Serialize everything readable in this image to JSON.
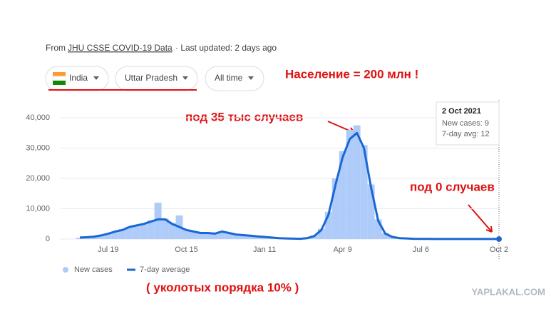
{
  "header": {
    "prefix": "From",
    "source": "JHU CSSE COVID-19 Data",
    "updated": "· Last updated: 2 days ago"
  },
  "filters": [
    "India",
    "Uttar Pradesh",
    "All time"
  ],
  "annotations": {
    "population": "Население = 200 млн !",
    "peak": "под 35 тыс случаев",
    "zero": "под 0 случаев",
    "vaccinated": "( уколотых порядка 10% )"
  },
  "watermark": "YAPLAKAL.COM",
  "tooltip": {
    "date": "2 Oct 2021",
    "lines": [
      "New cases: 9",
      "7-day avg: 12"
    ]
  },
  "chart_data": {
    "type": "bar",
    "categories": [
      null,
      null,
      null,
      null,
      "Jul 19",
      null,
      null,
      null,
      null,
      null,
      null,
      null,
      null,
      null,
      null,
      "Oct 15",
      null,
      null,
      null,
      null,
      null,
      null,
      null,
      null,
      null,
      null,
      "Jan 11",
      null,
      null,
      null,
      null,
      null,
      null,
      null,
      null,
      null,
      null,
      "Apr 9",
      null,
      null,
      null,
      null,
      null,
      null,
      null,
      null,
      null,
      null,
      "Jul 6",
      null,
      null,
      null,
      null,
      null,
      null,
      null,
      null,
      null,
      null,
      "Oct 2"
    ],
    "series": [
      {
        "name": "New cases",
        "type": "bar",
        "color": "#aecbfa",
        "values": [
          450,
          700,
          900,
          1300,
          2000,
          2600,
          3300,
          4100,
          4700,
          5200,
          6200,
          12000,
          6800,
          5300,
          7800,
          3200,
          2600,
          2100,
          2000,
          1900,
          2600,
          2100,
          1600,
          1400,
          1200,
          1000,
          800,
          550,
          350,
          250,
          180,
          130,
          350,
          1200,
          3400,
          9000,
          20000,
          29000,
          36000,
          37500,
          31000,
          18000,
          6500,
          2000,
          800,
          350,
          220,
          120,
          70,
          45,
          35,
          28,
          22,
          20,
          16,
          14,
          13,
          12,
          11,
          9
        ]
      },
      {
        "name": "7-day average",
        "type": "line",
        "color": "#1967d2",
        "values": [
          500,
          600,
          800,
          1200,
          1800,
          2500,
          3000,
          4000,
          4500,
          5000,
          5800,
          6500,
          6500,
          5000,
          4000,
          3000,
          2500,
          2000,
          2000,
          1800,
          2500,
          2000,
          1500,
          1300,
          1100,
          900,
          700,
          500,
          300,
          200,
          150,
          100,
          300,
          1000,
          3000,
          8000,
          18000,
          27000,
          33000,
          35000,
          30000,
          17000,
          6000,
          1800,
          700,
          300,
          200,
          100,
          60,
          40,
          30,
          25,
          20,
          20,
          15,
          15,
          12,
          12,
          12,
          12
        ]
      }
    ],
    "ylim": [
      0,
      40000
    ],
    "yticks": [
      0,
      {
        "value": 10000,
        "label": "10,000"
      },
      {
        "value": 20000,
        "label": "20,000"
      },
      {
        "value": 30000,
        "label": "30,000"
      },
      {
        "value": 40000,
        "label": "40,000"
      }
    ],
    "grid": true
  }
}
